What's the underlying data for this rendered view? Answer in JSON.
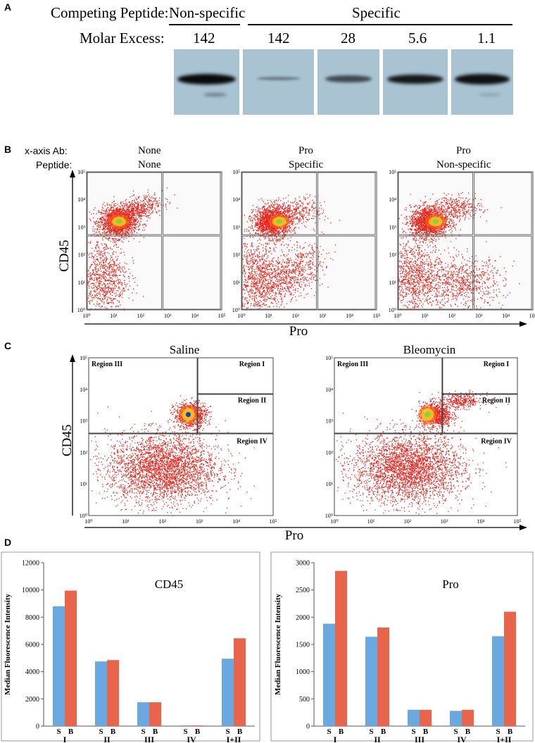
{
  "panel_labels": {
    "a": "A",
    "b": "B",
    "c": "C",
    "d": "D"
  },
  "panel_a": {
    "competing_label": "Competing Peptide:",
    "nonspecific": "Non-specific",
    "specific": "Specific",
    "molar_label": "Molar Excess:",
    "molar_values": [
      "142",
      "142",
      "28",
      "5.6",
      "1.1"
    ],
    "band_strength": [
      1.0,
      0.15,
      0.55,
      0.9,
      0.95
    ]
  },
  "panel_b": {
    "xaxis_label": "x-axis Ab:",
    "peptide_label": "Peptide:",
    "plots": [
      {
        "xab": "None",
        "peptide": "None"
      },
      {
        "xab": "Pro",
        "peptide": "Specific"
      },
      {
        "xab": "Pro",
        "peptide": "Non-specific"
      }
    ],
    "ylabel": "CD45",
    "xlabel": "Pro",
    "y_ticks": [
      "10⁰",
      "10¹",
      "10²",
      "10³",
      "10⁴",
      "10⁵"
    ],
    "x_ticks": [
      "10⁰",
      "10¹",
      "10²",
      "10³",
      "10⁴",
      "10⁵"
    ]
  },
  "panel_c": {
    "plots": [
      {
        "title": "Saline"
      },
      {
        "title": "Bleomycin"
      }
    ],
    "regions": [
      "Region III",
      "Region I",
      "Region II",
      "Region IV"
    ],
    "ylabel": "CD45",
    "xlabel": "Pro",
    "y_ticks": [
      "10⁰",
      "10¹",
      "10²",
      "10³",
      "10⁴",
      "10⁵"
    ],
    "x_ticks": [
      "10⁰",
      "10¹",
      "10²",
      "10³",
      "10⁴",
      "10⁵"
    ]
  },
  "colors": {
    "saline": "#6aa8e0",
    "bleomycin": "#e8654c",
    "dots": "#e8241c"
  },
  "chart_data": [
    {
      "type": "bar",
      "title": "CD45",
      "ylabel": "Median Fluorescence Intensity",
      "xlabel": "",
      "categories": [
        "I",
        "II",
        "III",
        "IV",
        "I+II"
      ],
      "bar_labels": [
        "S",
        "B"
      ],
      "series": [
        {
          "name": "S",
          "values": [
            8800,
            4750,
            1750,
            50,
            4950
          ]
        },
        {
          "name": "B",
          "values": [
            9950,
            4850,
            1750,
            50,
            6450
          ]
        }
      ],
      "ylim": [
        0,
        12000
      ],
      "y_ticks": [
        0,
        2000,
        4000,
        6000,
        8000,
        10000,
        12000
      ]
    },
    {
      "type": "bar",
      "title": "Pro",
      "ylabel": "Median Fluorescence Intensity",
      "xlabel": "",
      "categories": [
        "I",
        "II",
        "III",
        "IV",
        "I+II"
      ],
      "bar_labels": [
        "S",
        "B"
      ],
      "series": [
        {
          "name": "S",
          "values": [
            1880,
            1640,
            300,
            280,
            1650
          ]
        },
        {
          "name": "B",
          "values": [
            2850,
            1810,
            300,
            300,
            2100
          ]
        }
      ],
      "ylim": [
        0,
        3000
      ],
      "y_ticks": [
        0,
        500,
        1000,
        1500,
        2000,
        2500,
        3000
      ]
    }
  ]
}
